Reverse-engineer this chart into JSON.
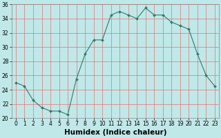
{
  "x": [
    0,
    1,
    2,
    3,
    4,
    5,
    6,
    7,
    8,
    9,
    10,
    11,
    12,
    13,
    14,
    15,
    16,
    17,
    18,
    19,
    20,
    21,
    22,
    23
  ],
  "y": [
    25,
    24.5,
    22.5,
    21.5,
    21,
    21,
    20.5,
    25.5,
    29,
    31,
    31,
    34.5,
    35,
    34.5,
    34,
    35.5,
    34.5,
    34.5,
    33.5,
    33,
    32.5,
    29,
    26,
    24.5
  ],
  "line_color": "#2d7a6a",
  "marker_color": "#2d7a6a",
  "bg_color": "#c0e8e8",
  "grid_color_major": "#ff6666",
  "grid_color_minor": "#ff9999",
  "xlabel": "Humidex (Indice chaleur)",
  "ylim": [
    20,
    36
  ],
  "xlim_min": -0.5,
  "xlim_max": 23.5,
  "yticks": [
    20,
    22,
    24,
    26,
    28,
    30,
    32,
    34,
    36
  ],
  "xticks": [
    0,
    1,
    2,
    3,
    4,
    5,
    6,
    7,
    8,
    9,
    10,
    11,
    12,
    13,
    14,
    15,
    16,
    17,
    18,
    19,
    20,
    21,
    22,
    23
  ],
  "tick_fontsize": 5.5,
  "xlabel_fontsize": 7.5,
  "spine_color": "#888888"
}
